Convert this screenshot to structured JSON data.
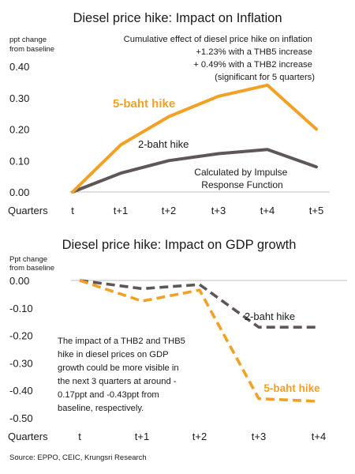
{
  "colors": {
    "orange": "#f3a126",
    "gray": "#5f5658",
    "axis": "#bfbfbf",
    "text": "#1a1a1a"
  },
  "chart_data": [
    {
      "type": "line",
      "title": "Diesel price hike: Impact on Inflation",
      "ylabel": "ppt change from baseline",
      "xlabel": "Quarters",
      "categories": [
        "t",
        "t+1",
        "t+2",
        "t+3",
        "t+4",
        "t+5"
      ],
      "ylim": [
        0,
        0.4
      ],
      "yticks": [
        "0.00",
        "0.10",
        "0.20",
        "0.30",
        "0.40"
      ],
      "grid": false,
      "series": [
        {
          "name": "5-baht hike",
          "values": [
            0,
            0.15,
            0.24,
            0.305,
            0.34,
            0.2
          ],
          "color": "#f3a126",
          "dashed": false
        },
        {
          "name": "2-baht hike",
          "values": [
            0,
            0.06,
            0.1,
            0.122,
            0.135,
            0.08
          ],
          "color": "#5f5658",
          "dashed": false
        }
      ],
      "note": [
        "Cumulative effect of diesel price hike on inflation",
        "+1.23% with a THB5 increase",
        "+ 0.49% with a THB2 increase",
        "(significant for 5 quarters)"
      ],
      "method_note": [
        "Calculated by Impulse",
        "Response Function"
      ]
    },
    {
      "type": "line",
      "title": "Diesel price hike: Impact on GDP growth",
      "ylabel": "Ppt change from baseline",
      "xlabel": "Quarters",
      "categories": [
        "t",
        "t+1",
        "t+2",
        "t+3",
        "t+4"
      ],
      "ylim": [
        -0.5,
        0
      ],
      "yticks": [
        "0.00",
        "-0.10",
        "-0.20",
        "-0.30",
        "-0.40",
        "-0.50"
      ],
      "grid": false,
      "series": [
        {
          "name": "5-baht hike",
          "values": [
            0,
            -0.075,
            -0.035,
            -0.43,
            -0.44
          ],
          "color": "#f3a126",
          "dashed": true
        },
        {
          "name": "2-baht hike",
          "values": [
            0,
            -0.03,
            -0.015,
            -0.17,
            -0.17
          ],
          "color": "#5f5658",
          "dashed": true
        }
      ],
      "note": [
        "The impact of a THB2 and THB5",
        "hike in diesel prices on GDP",
        "growth could be more visible in",
        "the next 3 quarters at around -",
        "0.17ppt and -0.43ppt from",
        "baseline, respectively."
      ]
    }
  ],
  "source": "Source: EPPO, CEIC, Krungsri Research"
}
